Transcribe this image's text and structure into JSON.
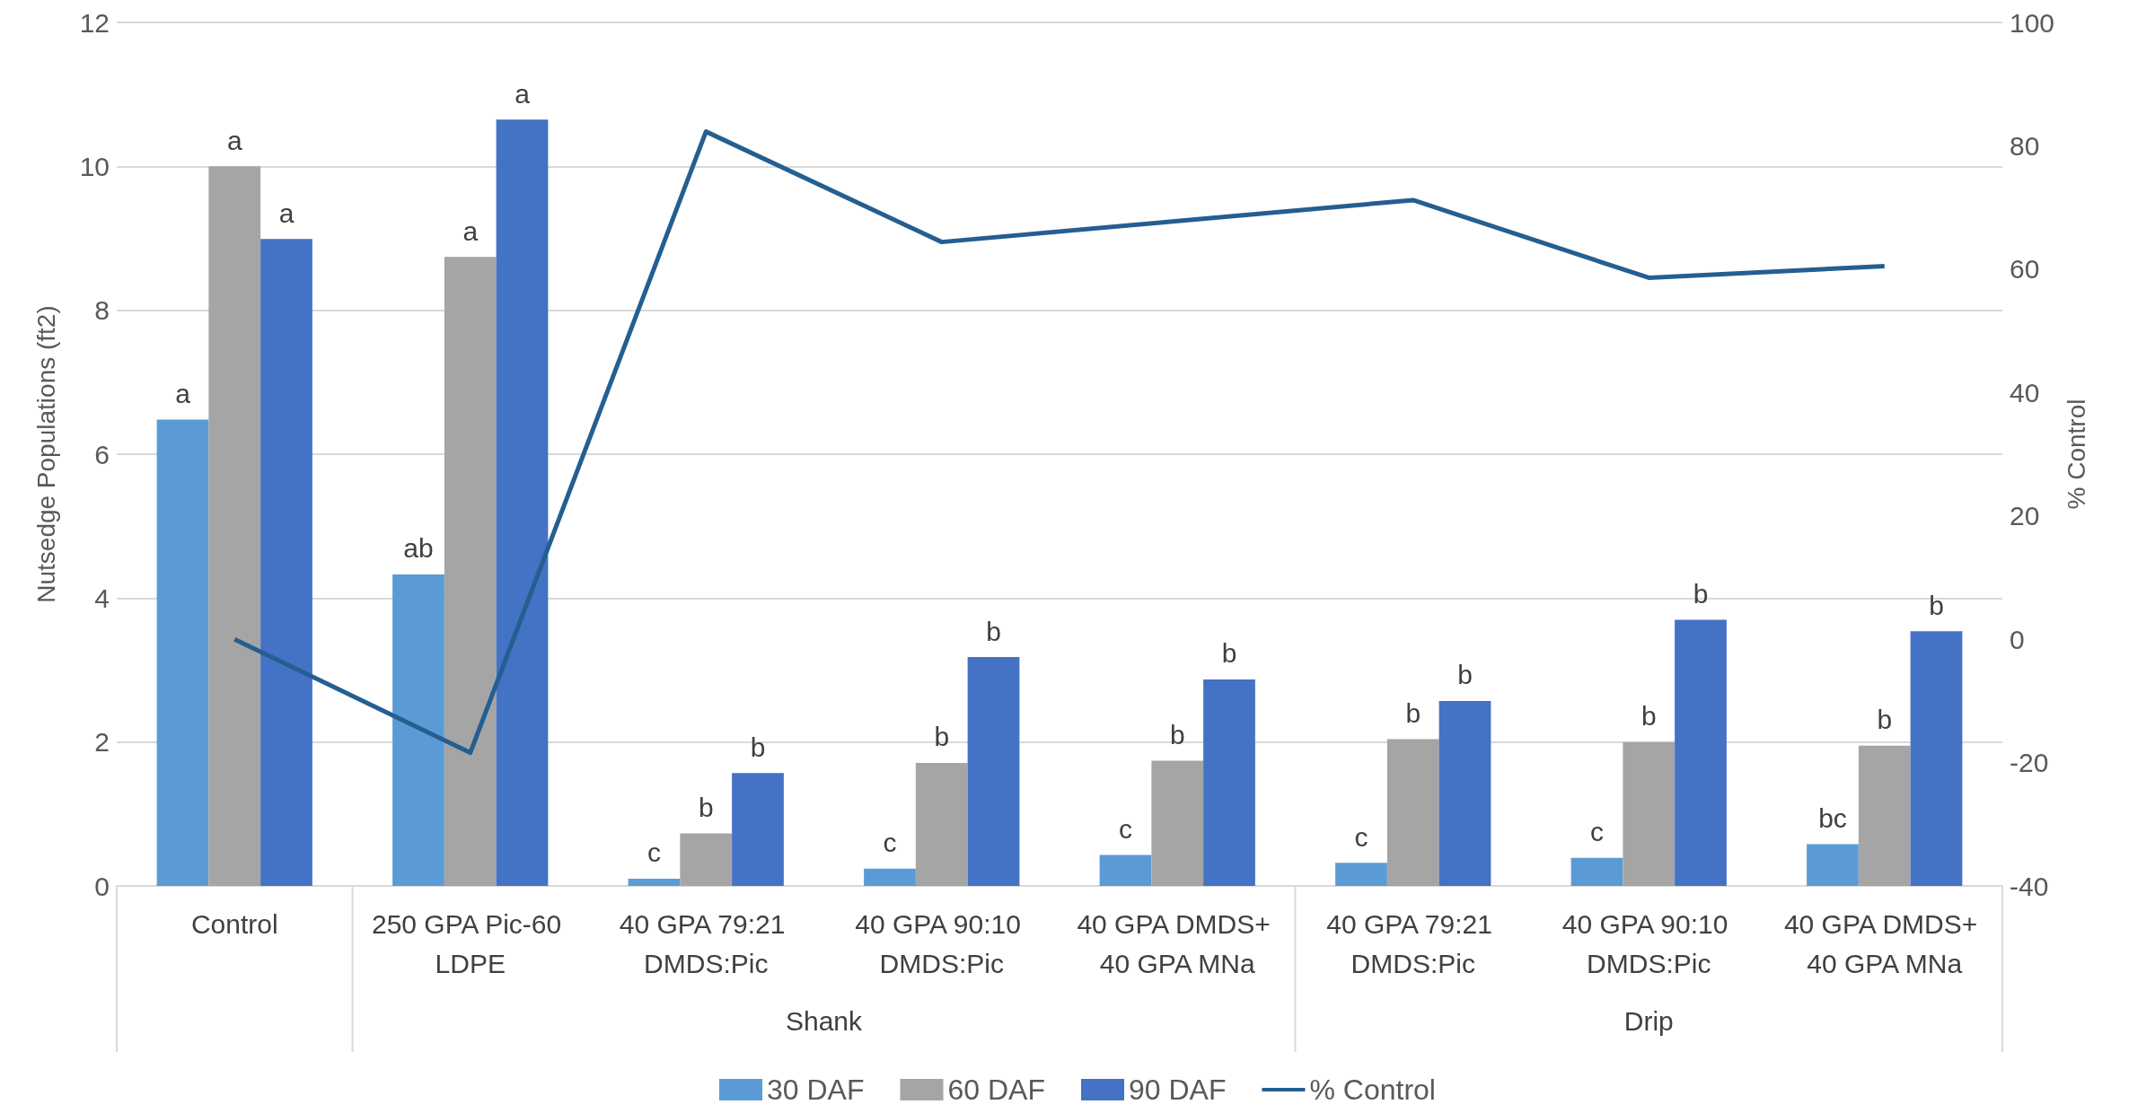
{
  "chart_data": {
    "type": "bar",
    "categories": [
      "Control",
      "250 GPA Pic-60 LDPE",
      "40 GPA 79:21 DMDS:Pic",
      "40 GPA 90:10 DMDS:Pic",
      "40 GPA DMDS+ 40 GPA MNa",
      "40 GPA 79:21 DMDS:Pic",
      "40 GPA 90:10 DMDS:Pic",
      "40 GPA DMDS+ 40 GPA MNa"
    ],
    "ylabel": "Nutsedge Populations (ft2)",
    "y2label": "% Control",
    "series": [
      {
        "name": "30 DAF",
        "color": "#5b9bd5",
        "values": [
          6.48,
          4.33,
          0.1,
          0.24,
          0.43,
          0.32,
          0.39,
          0.58
        ],
        "value_labels": [
          "a",
          "ab",
          "c",
          "c",
          "c",
          "c",
          "c",
          "bc"
        ]
      },
      {
        "name": "60 DAF",
        "color": "#a5a5a5",
        "values": [
          10.0,
          8.74,
          0.73,
          1.71,
          1.74,
          2.04,
          2.0,
          1.95
        ],
        "value_labels": [
          "a",
          "a",
          "b",
          "b",
          "b",
          "b",
          "b",
          "b"
        ]
      },
      {
        "name": "90 DAF",
        "color": "#4472c4",
        "values": [
          8.99,
          10.65,
          1.57,
          3.18,
          2.87,
          2.57,
          3.7,
          3.54
        ],
        "value_labels": [
          "a",
          "a",
          "b",
          "b",
          "b",
          "b",
          "b",
          "b"
        ]
      },
      {
        "name": "% Control",
        "type": "line",
        "axis": "y2",
        "color": "#255e91",
        "marker": "none",
        "values": [
          0,
          -18.4,
          82.3,
          64.4,
          67.8,
          71.2,
          58.6,
          60.5
        ]
      }
    ],
    "ylim": [
      0,
      12
    ],
    "yticks": [
      0,
      2,
      4,
      6,
      8,
      10,
      12
    ],
    "y2lim": [
      -40,
      100
    ],
    "y2ticks": [
      -40,
      -20,
      0,
      20,
      40,
      60,
      80,
      100
    ],
    "annotations": [
      "Shank",
      "Drip"
    ],
    "grid": "y",
    "legend": "bottom"
  }
}
